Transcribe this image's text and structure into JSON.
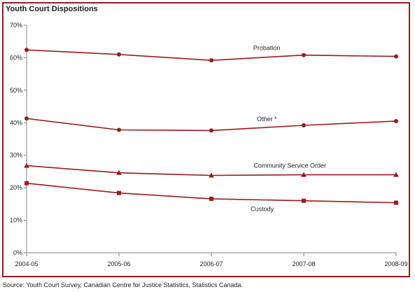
{
  "chart_data": {
    "type": "line",
    "title": "Youth Court Dispositions",
    "categories": [
      "2004-05",
      "2005-06",
      "2006-07",
      "2007-08",
      "2008-09"
    ],
    "ylim": [
      0,
      70
    ],
    "yticks": [
      0,
      10,
      20,
      30,
      40,
      50,
      60,
      70
    ],
    "ytick_labels": [
      "0%",
      "10%",
      "20%",
      "30%",
      "40%",
      "50%",
      "60%",
      "70%"
    ],
    "grid": false,
    "line_color": "#9b1b1b",
    "series": [
      {
        "name": "Probation",
        "marker": "circle",
        "values": [
          62.4,
          61.0,
          59.2,
          60.8,
          60.4
        ]
      },
      {
        "name": "Other *",
        "marker": "circle",
        "values": [
          41.3,
          37.8,
          37.6,
          39.2,
          40.5
        ]
      },
      {
        "name": "Community Service Order",
        "marker": "triangle",
        "values": [
          26.8,
          24.6,
          23.8,
          24.0,
          24.0
        ]
      },
      {
        "name": "Custody",
        "marker": "square",
        "values": [
          21.4,
          18.4,
          16.6,
          16.0,
          15.4
        ]
      }
    ]
  },
  "source": "Source:  Youth Court Survey, Canadian Centre for Justice Statistics, Statistics Canada."
}
